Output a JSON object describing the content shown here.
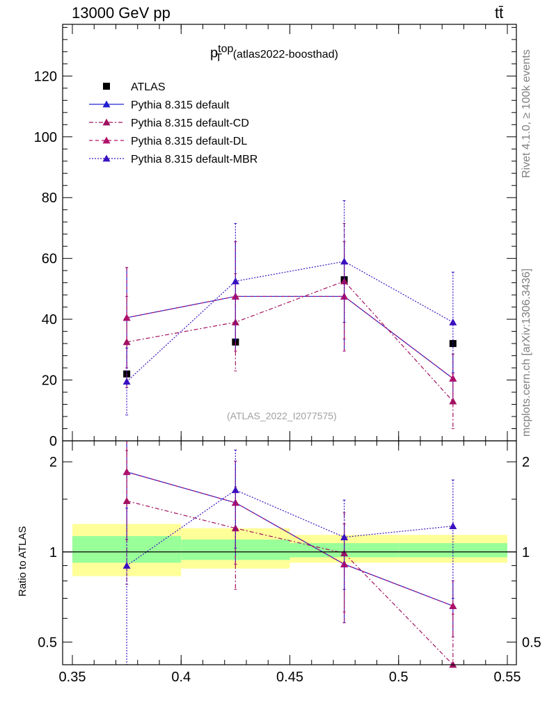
{
  "header": {
    "process_label": "13000 GeV pp",
    "final_state_label": "tt̄"
  },
  "side_labels": {
    "rivet": "Rivet 4.1.0, ≥ 100k events",
    "source": "mcplots.cern.ch [arXiv:1306.3436]"
  },
  "analysis_tag": "(ATLAS_2022_I2077575)",
  "title": {
    "main": "p",
    "sup": "top",
    "sub": "T",
    "rest": "(atlas2022-boosthad)"
  },
  "chart_data": [
    {
      "type": "scatter",
      "panel": "main",
      "title": "p_T^top (atlas2022-boosthad)",
      "xlabel": "",
      "ylabel": "",
      "xlim": [
        0.35,
        0.55
      ],
      "ylim": [
        0,
        137
      ],
      "yticks": [
        0,
        20,
        40,
        60,
        80,
        100,
        120
      ],
      "xticks": [
        0.35,
        0.4,
        0.45,
        0.5,
        0.55
      ],
      "legend_position": "top-left",
      "series": [
        {
          "name": "ATLAS",
          "style": "data",
          "color": "#000000",
          "x": [
            0.375,
            0.425,
            0.475,
            0.525
          ],
          "y": [
            22,
            32.5,
            53,
            32
          ],
          "err": [
            0,
            0,
            0,
            0
          ]
        },
        {
          "name": "Pythia 8.315 default",
          "style": "solid",
          "color": "#2020d0",
          "x": [
            0.375,
            0.425,
            0.475,
            0.525
          ],
          "y": [
            40.5,
            47.5,
            47.5,
            20.5
          ],
          "err": [
            16.5,
            18,
            18,
            8
          ]
        },
        {
          "name": "Pythia 8.315 default-CD",
          "style": "dashdot",
          "color": "#a01060",
          "x": [
            0.375,
            0.425,
            0.475,
            0.525
          ],
          "y": [
            32.5,
            39,
            52.5,
            13
          ],
          "err": [
            15,
            16,
            19,
            9
          ]
        },
        {
          "name": "Pythia 8.315 default-DL",
          "style": "dashed",
          "color": "#b0106a",
          "x": [
            0.375,
            0.425,
            0.475,
            0.525
          ],
          "y": [
            40.5,
            47.5,
            47.5,
            20.5
          ],
          "err": [
            16.5,
            18,
            18,
            8
          ]
        },
        {
          "name": "Pythia 8.315 default-MBR",
          "style": "dotted",
          "color": "#3a10c0",
          "x": [
            0.375,
            0.425,
            0.475,
            0.525
          ],
          "y": [
            19.5,
            52.5,
            59,
            39
          ],
          "err": [
            11,
            19,
            20,
            16.5
          ]
        }
      ]
    },
    {
      "type": "scatter",
      "panel": "ratio",
      "xlabel": "",
      "ylabel": "Ratio to ATLAS",
      "xlim": [
        0.35,
        0.55
      ],
      "ylim": [
        0.42,
        2.35
      ],
      "ylog": true,
      "yticks": [
        0.5,
        1,
        2
      ],
      "xticks": [
        0.35,
        0.4,
        0.45,
        0.5,
        0.55
      ],
      "uncertainty_bands": [
        {
          "x0": 0.35,
          "x1": 0.4,
          "yellow": [
            0.83,
            1.24
          ],
          "green": [
            0.92,
            1.13
          ]
        },
        {
          "x0": 0.4,
          "x1": 0.45,
          "yellow": [
            0.88,
            1.2
          ],
          "green": [
            0.94,
            1.1
          ]
        },
        {
          "x0": 0.45,
          "x1": 0.5,
          "yellow": [
            0.92,
            1.14
          ],
          "green": [
            0.96,
            1.07
          ]
        },
        {
          "x0": 0.5,
          "x1": 0.55,
          "yellow": [
            0.92,
            1.14
          ],
          "green": [
            0.96,
            1.07
          ]
        }
      ],
      "series": [
        {
          "name": "Pythia 8.315 default",
          "style": "solid",
          "color": "#2020d0",
          "x": [
            0.375,
            0.425,
            0.475,
            0.525
          ],
          "y": [
            1.85,
            1.46,
            0.91,
            0.66
          ],
          "err_lo": [
            0.75,
            0.55,
            0.33,
            0.14
          ],
          "err_hi": [
            0.75,
            0.55,
            0.33,
            0.14
          ]
        },
        {
          "name": "Pythia 8.315 default-CD",
          "style": "dashdot",
          "color": "#a01060",
          "x": [
            0.375,
            0.425,
            0.475,
            0.525
          ],
          "y": [
            1.48,
            1.2,
            0.99,
            0.42
          ],
          "err_lo": [
            0.7,
            0.45,
            0.36,
            0.2
          ],
          "err_hi": [
            0.7,
            0.45,
            0.36,
            0.2
          ]
        },
        {
          "name": "Pythia 8.315 default-DL",
          "style": "dashed",
          "color": "#b0106a",
          "x": [
            0.375,
            0.425,
            0.475,
            0.525
          ],
          "y": [
            1.85,
            1.46,
            0.91,
            0.66
          ],
          "err_lo": [
            0.75,
            0.55,
            0.33,
            0.14
          ],
          "err_hi": [
            0.75,
            0.55,
            0.33,
            0.14
          ]
        },
        {
          "name": "Pythia 8.315 default-MBR",
          "style": "dotted",
          "color": "#3a10c0",
          "x": [
            0.375,
            0.425,
            0.475,
            0.525
          ],
          "y": [
            0.9,
            1.61,
            1.12,
            1.22
          ],
          "err_lo": [
            0.5,
            0.58,
            0.37,
            0.52
          ],
          "err_hi": [
            0.5,
            0.58,
            0.37,
            0.52
          ]
        }
      ]
    }
  ]
}
